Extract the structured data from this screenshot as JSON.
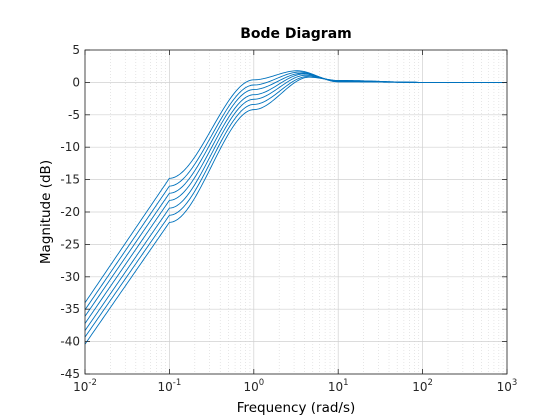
{
  "chart_data": {
    "type": "line",
    "title": "Bode Diagram",
    "xlabel": "Frequency  (rad/s)",
    "ylabel": "Magnitude (dB)",
    "xscale": "log",
    "xlim": [
      0.01,
      1000
    ],
    "ylim": [
      -45,
      5
    ],
    "x_tick_labels": [
      {
        "base": "10",
        "exp": "-2"
      },
      {
        "base": "10",
        "exp": "-1"
      },
      {
        "base": "10",
        "exp": "0"
      },
      {
        "base": "10",
        "exp": "1"
      },
      {
        "base": "10",
        "exp": "2"
      },
      {
        "base": "10",
        "exp": "3"
      }
    ],
    "y_tick_labels": [
      "5",
      "0",
      "-5",
      "-10",
      "-15",
      "-20",
      "-25",
      "-30",
      "-35",
      "-40",
      "-45"
    ],
    "grid": true,
    "line_color": "#0072bd",
    "series": [
      {
        "x": [
          0.01,
          0.1,
          1,
          3.27,
          10,
          100,
          1000
        ],
        "y": [
          -34.0,
          -14.8,
          0.4,
          1.8,
          0.1,
          0,
          0
        ]
      },
      {
        "x": [
          0.01,
          0.1,
          1,
          3.48,
          10,
          100,
          1000
        ],
        "y": [
          -35.1,
          -16.0,
          -0.4,
          1.6,
          0.1,
          0,
          0
        ]
      },
      {
        "x": [
          0.01,
          0.1,
          1,
          3.68,
          10,
          100,
          1000
        ],
        "y": [
          -36.1,
          -17.1,
          -1.1,
          1.4,
          0.2,
          0,
          0
        ]
      },
      {
        "x": [
          0.01,
          0.1,
          1,
          3.89,
          10,
          100,
          1000
        ],
        "y": [
          -37.2,
          -18.2,
          -1.9,
          1.3,
          0.2,
          0,
          0
        ]
      },
      {
        "x": [
          0.01,
          0.1,
          1,
          4.09,
          10,
          100,
          1000
        ],
        "y": [
          -38.3,
          -19.4,
          -2.6,
          1.1,
          0.2,
          0,
          0
        ]
      },
      {
        "x": [
          0.01,
          0.1,
          1,
          4.3,
          10,
          100,
          1000
        ],
        "y": [
          -39.3,
          -20.5,
          -3.4,
          0.9,
          0.3,
          0,
          0
        ]
      },
      {
        "x": [
          0.01,
          0.1,
          1,
          4.5,
          10,
          100,
          1000
        ],
        "y": [
          -40.4,
          -21.6,
          -4.2,
          0.8,
          0.3,
          0,
          0
        ]
      }
    ]
  }
}
